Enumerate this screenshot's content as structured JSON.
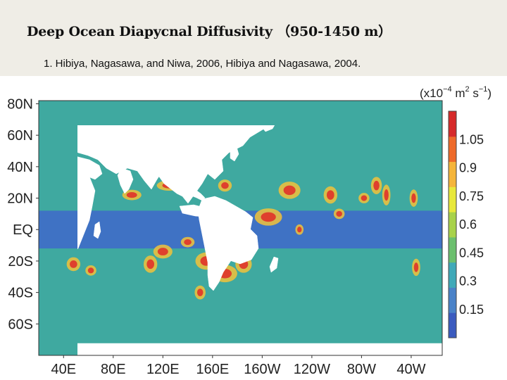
{
  "slide": {
    "title": "Deep Ocean Diapycnal Diffusivity （950-1450 m）",
    "citation": "1. Hibiya, Nagasawa, and Niwa, 2006, Hibiya and Nagasawa, 2004."
  },
  "map": {
    "lat_ticks": [
      "80N",
      "60N",
      "40N",
      "20N",
      "EQ",
      "20S",
      "40S",
      "60S"
    ],
    "lat_values": [
      80,
      60,
      40,
      20,
      0,
      -20,
      -40,
      -60
    ],
    "lon_ticks": [
      "40E",
      "80E",
      "120E",
      "160E",
      "160W",
      "120W",
      "80W",
      "40W"
    ],
    "lon_values": [
      40,
      80,
      120,
      160,
      200,
      240,
      280,
      320
    ],
    "lon_range": [
      20,
      345
    ],
    "lat_range": [
      -80,
      82
    ],
    "colorbar": {
      "unit_prefix": "(x10",
      "unit_exp": "−4",
      "unit_m": " m",
      "unit_m_exp": "2",
      "unit_s": " s",
      "unit_s_exp": "−1",
      "unit_close": ")",
      "ticks": [
        "1.05",
        "0.9",
        "0.75",
        "0.6",
        "0.45",
        "0.3",
        "0.15"
      ],
      "tick_values": [
        1.05,
        0.9,
        0.75,
        0.6,
        0.45,
        0.3,
        0.15
      ],
      "range": [
        0,
        1.2
      ],
      "colors": [
        "#3b5bbf",
        "#4a82c8",
        "#3fa9b8",
        "#6bbf6e",
        "#a8d24a",
        "#e8e83a",
        "#f5b53a",
        "#ee6a2a",
        "#d62a2a"
      ]
    },
    "colors": {
      "background_field": "#3fa9a0",
      "equatorial_band": "#3f72c4",
      "land": "#ffffff",
      "hotspot_high": "#e0322a",
      "hotspot_mid": "#f2c23a"
    }
  }
}
